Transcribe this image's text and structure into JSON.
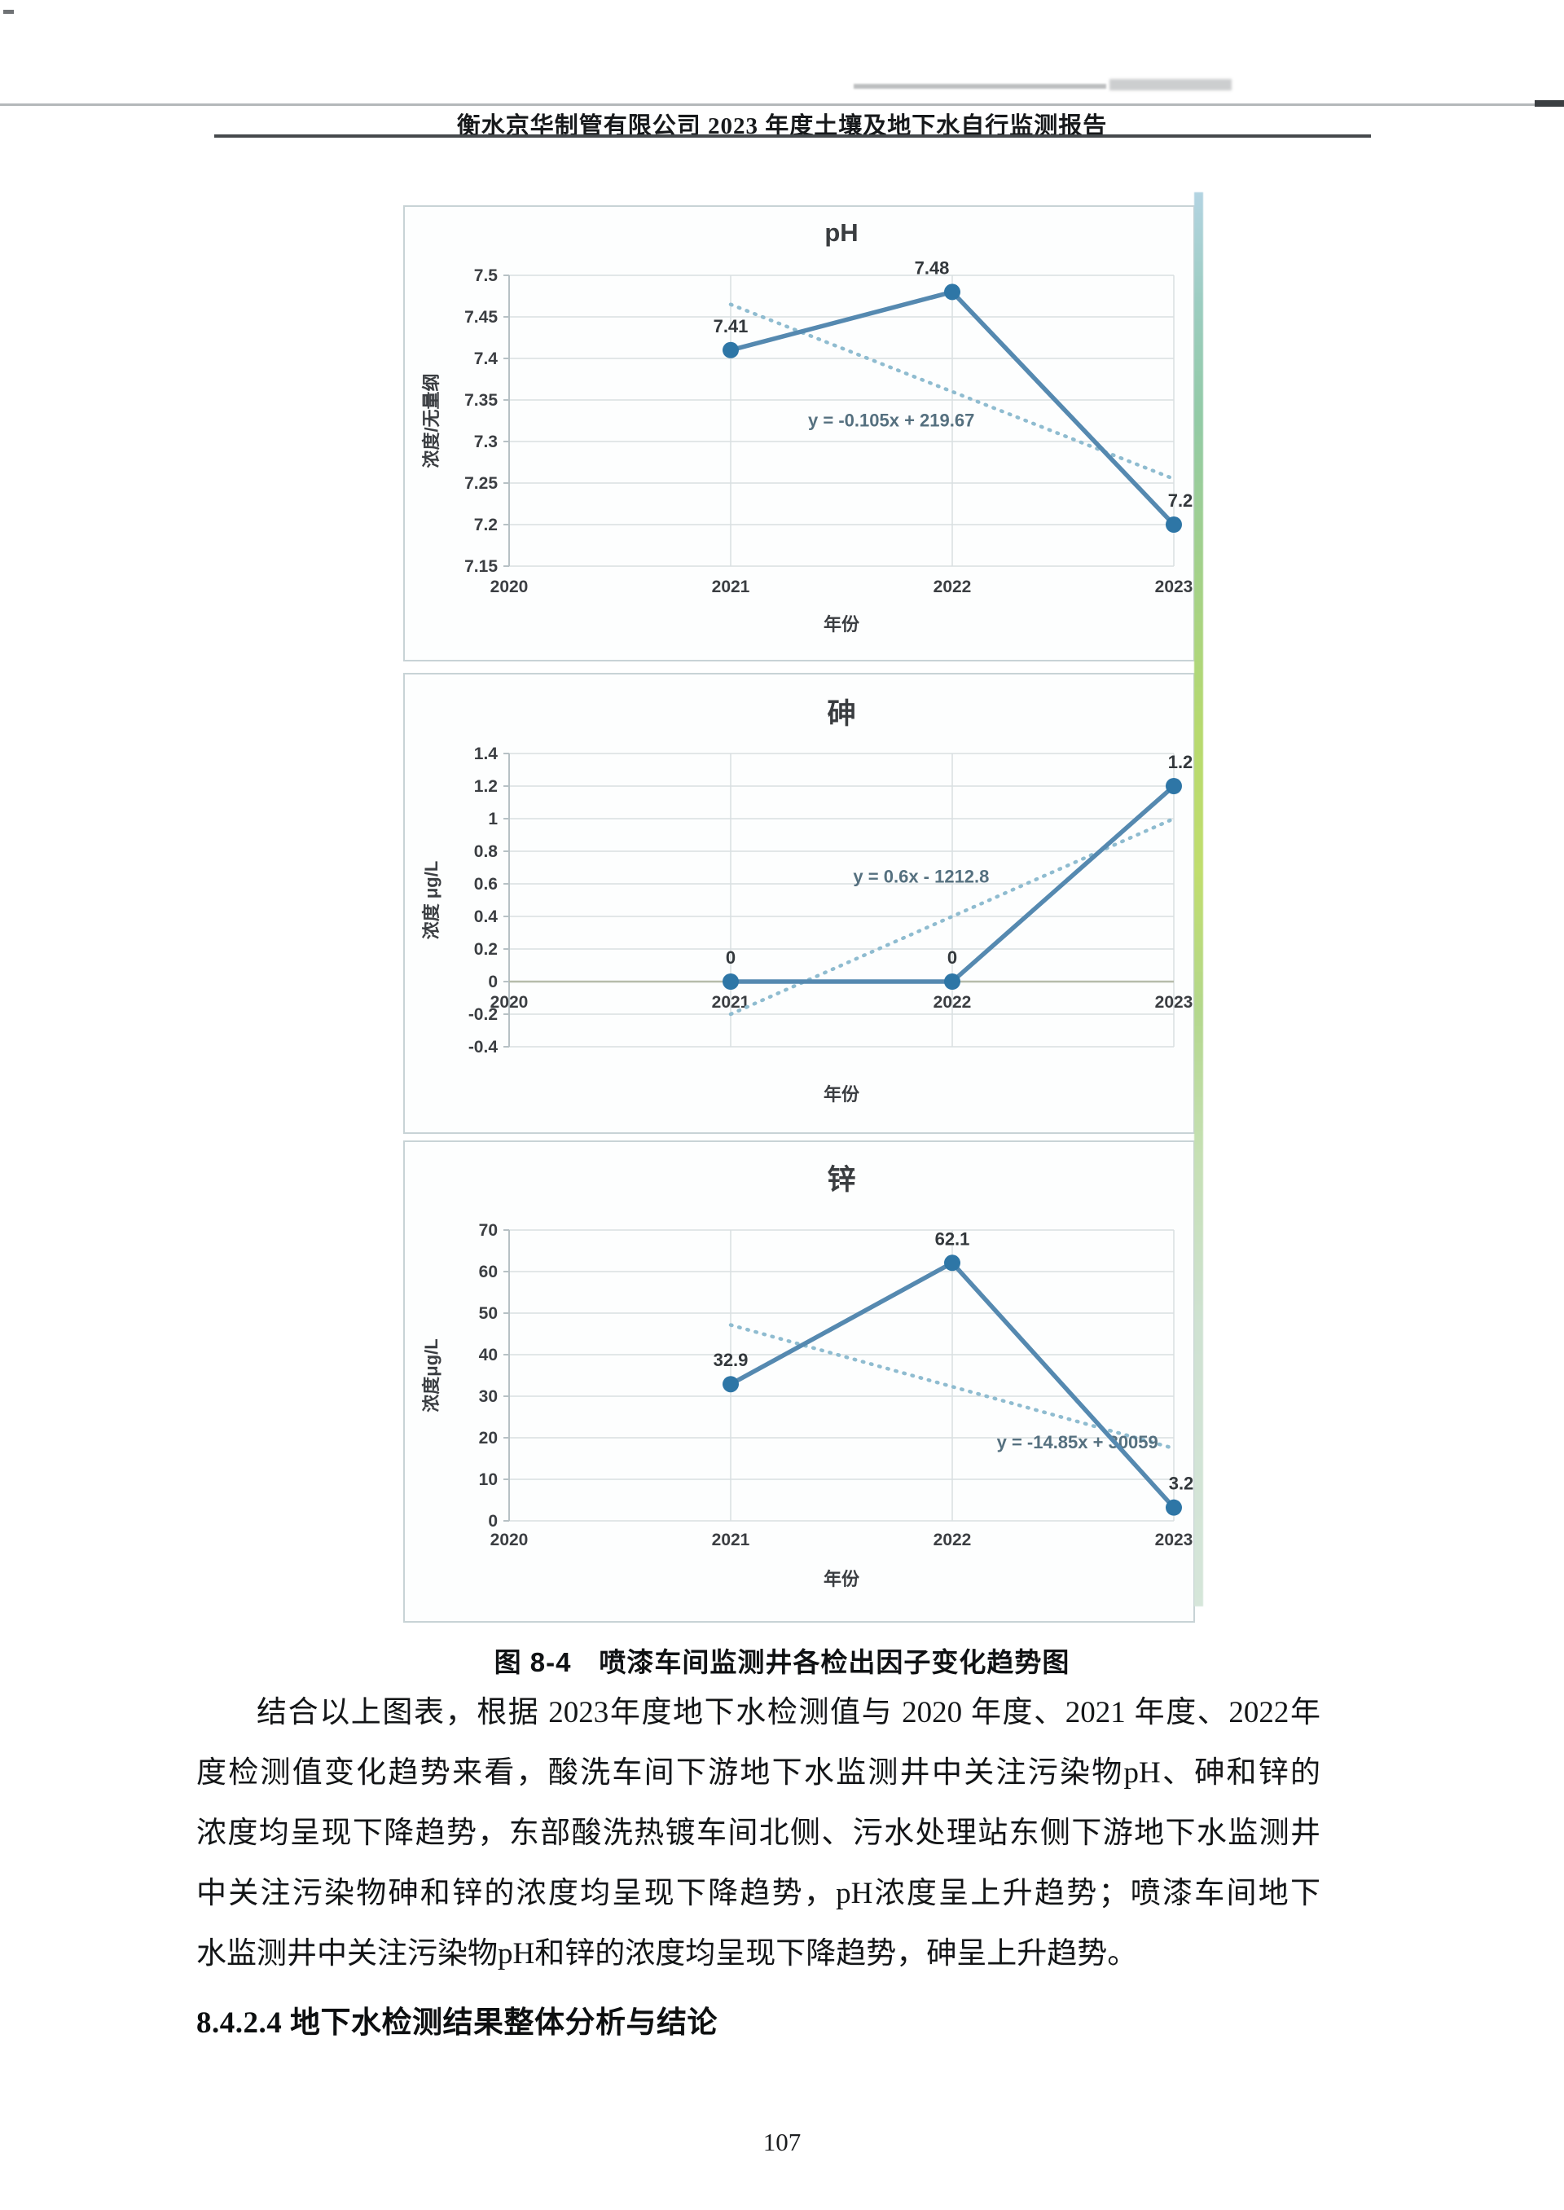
{
  "page": {
    "header_title": "衡水京华制管有限公司 2023 年度土壤及地下水自行监测报告",
    "page_number": "107"
  },
  "figure": {
    "caption": "图 8-4　喷漆车间监测井各检出因子变化趋势图"
  },
  "paragraph": {
    "lines": [
      "结合以上图表，根据 2023年度地下水检测值与 2020 年度、2021 年度、2022年",
      "度检测值变化趋势来看，酸洗车间下游地下水监测井中关注污染物pH、砷和锌的",
      "浓度均呈现下降趋势，东部酸洗热镀车间北侧、污水处理站东侧下游地下水监测井",
      "中关注污染物砷和锌的浓度均呈现下降趋势，pH浓度呈上升趋势；喷漆车间地下",
      "水监测井中关注污染物pH和锌的浓度均呈现下降趋势，砷呈上升趋势。"
    ]
  },
  "section_heading": "8.4.2.4 地下水检测结果整体分析与结论",
  "colors": {
    "line": "#5589b0",
    "marker": "#2e76a6",
    "trend": "#8fbcd0",
    "grid": "#d9dfe1",
    "axis": "#b7c1c5",
    "zero_axis": "#b6bcab",
    "box_border": "#c8d3d6",
    "box_bg": "#fdfefe",
    "tick_text": "#3b3e42",
    "equation_text": "#55707f"
  },
  "chart_data": [
    {
      "id": "ph",
      "type": "line",
      "title": "pH",
      "xlabel": "年份",
      "ylabel": "浓度/无量纲",
      "categories": [
        2020,
        2021,
        2022,
        2023
      ],
      "x": [
        2021,
        2022,
        2023
      ],
      "values": [
        7.41,
        7.48,
        7.2
      ],
      "point_labels": [
        "7.41",
        "7.48",
        "7.2"
      ],
      "yticks": [
        7.5,
        7.45,
        7.4,
        7.35,
        7.3,
        7.25,
        7.2,
        7.15
      ],
      "ylim": [
        7.15,
        7.5
      ],
      "trendline": {
        "equation": "y = -0.105x + 219.67",
        "slope": -0.105,
        "intercept": 219.67
      },
      "legend": "none",
      "grid": "on"
    },
    {
      "id": "arsenic",
      "type": "line",
      "title": "砷",
      "xlabel": "年份",
      "ylabel": "浓度 μg/L",
      "categories": [
        2020,
        2021,
        2022,
        2023
      ],
      "x": [
        2021,
        2022,
        2023
      ],
      "values": [
        0,
        0,
        1.2
      ],
      "point_labels": [
        "0",
        "0",
        "1.2"
      ],
      "yticks": [
        1.4,
        1.2,
        1,
        0.8,
        0.6,
        0.4,
        0.2,
        0,
        -0.2,
        -0.4
      ],
      "ylim": [
        -0.4,
        1.4
      ],
      "trendline": {
        "equation": "y = 0.6x - 1212.8",
        "slope": 0.6,
        "intercept": -1212.8
      },
      "legend": "none",
      "grid": "on"
    },
    {
      "id": "zinc",
      "type": "line",
      "title": "锌",
      "xlabel": "年份",
      "ylabel": "浓度μg/L",
      "categories": [
        2020,
        2021,
        2022,
        2023
      ],
      "x": [
        2021,
        2022,
        2023
      ],
      "values": [
        32.9,
        62.1,
        3.2
      ],
      "point_labels": [
        "32.9",
        "62.1",
        "3.2"
      ],
      "yticks": [
        70,
        60,
        50,
        40,
        30,
        20,
        10,
        0
      ],
      "ylim": [
        0,
        70
      ],
      "trendline": {
        "equation": "y = -14.85x + 30059",
        "slope": -14.85,
        "intercept": 30059
      },
      "legend": "none",
      "grid": "on"
    }
  ]
}
